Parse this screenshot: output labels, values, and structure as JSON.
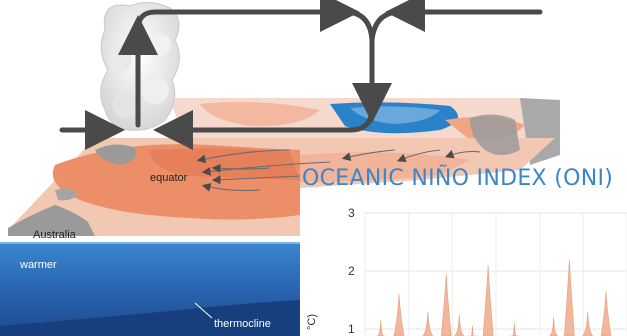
{
  "diagram": {
    "labels": {
      "equator": "equator",
      "australia": "Australia",
      "warmer": "warmer",
      "thermocline": "thermocline"
    }
  },
  "chart": {
    "title": "OCEANIC NIÑO INDEX (ONI)",
    "y_label_fragment": "°C)",
    "y_ticks": [
      "3",
      "2",
      "1"
    ]
  },
  "chart_data": {
    "type": "area",
    "title": "OCEANIC NIÑO INDEX (ONI)",
    "ylabel": "°C)",
    "ylim": [
      0.8,
      3
    ],
    "y_ticks": [
      1,
      2,
      3
    ],
    "peaks": [
      {
        "x": 0.06,
        "y": 1.15
      },
      {
        "x": 0.13,
        "y": 1.6
      },
      {
        "x": 0.24,
        "y": 1.3
      },
      {
        "x": 0.31,
        "y": 1.95
      },
      {
        "x": 0.36,
        "y": 1.25
      },
      {
        "x": 0.41,
        "y": 1.05
      },
      {
        "x": 0.47,
        "y": 2.1
      },
      {
        "x": 0.57,
        "y": 1.1
      },
      {
        "x": 0.72,
        "y": 1.2
      },
      {
        "x": 0.78,
        "y": 2.2
      },
      {
        "x": 0.85,
        "y": 1.3
      },
      {
        "x": 0.92,
        "y": 1.65
      }
    ]
  },
  "colors": {
    "title": "#3a86c8",
    "warm_pool": "#ee9a78",
    "warm_light": "#f7cbb7",
    "cool_pool": "#2a82c9",
    "ocean_deep": "#1f4f96",
    "ocean_mid": "#2f6fbf",
    "arrow": "#4a4a4a",
    "land": "#9a9a9a",
    "oni_fill": "#f2b79b"
  }
}
